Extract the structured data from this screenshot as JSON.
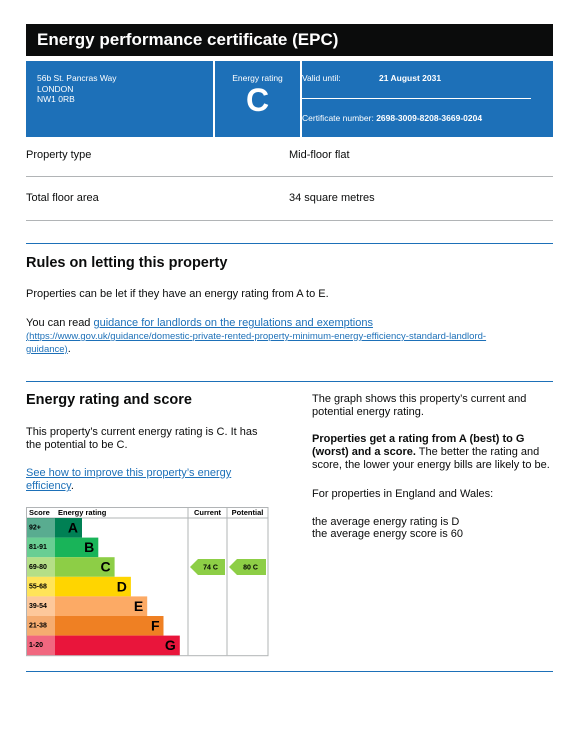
{
  "header": {
    "title": "Energy performance certificate (EPC)"
  },
  "summary": {
    "address": [
      "56b St. Pancras Way",
      "LONDON",
      "NW1 0RB"
    ],
    "rating_label": "Energy rating",
    "rating": "C",
    "valid_until_label": "Valid until:",
    "valid_until": "21 August 2031",
    "certificate_number_label": "Certificate number:",
    "certificate_number": "2698-3009-8208-3669-0204"
  },
  "details": [
    {
      "label": "Property type",
      "value": "Mid-floor flat"
    },
    {
      "label": "Total floor area",
      "value": "34 square metres"
    }
  ],
  "letting": {
    "heading": "Rules on letting this property",
    "text": "Properties can be let if they have an energy rating from A to E.",
    "read_prefix": "You can read",
    "link_text": "guidance for landlords on the regulations and exemptions",
    "link_url": "(https://www.gov.uk/guidance/domestic-private-rented-property-minimum-energy-efficiency-standard-landlord-guidance)",
    "read_suffix": "."
  },
  "rating": {
    "heading": "Energy rating and score",
    "current_text": "This property’s current energy rating is C. It has the potential to be C.",
    "improve_link": "See how to improve this property’s energy efficiency",
    "improve_suffix": ".",
    "graph": {
      "headers": [
        "Score",
        "Energy rating",
        "Current",
        "Potential"
      ],
      "bands": [
        {
          "score": "92+",
          "letter": "A",
          "color": "#008054"
        },
        {
          "score": "81-91",
          "letter": "B",
          "color": "#19b459"
        },
        {
          "score": "69-80",
          "letter": "C",
          "color": "#8dce46"
        },
        {
          "score": "55-68",
          "letter": "D",
          "color": "#ffd500"
        },
        {
          "score": "39-54",
          "letter": "E",
          "color": "#fcaa65"
        },
        {
          "score": "21-38",
          "letter": "F",
          "color": "#ef8023"
        },
        {
          "score": "1-20",
          "letter": "G",
          "color": "#e9153b"
        }
      ],
      "current": {
        "score": 74,
        "letter": "C"
      },
      "potential": {
        "score": 80,
        "letter": "C"
      }
    },
    "explanation": {
      "graph_text": "The graph shows this property’s current and potential energy rating.",
      "bold": "Properties get a rating from A (best) to G (worst) and a score.",
      "rest": " The better the rating and score, the lower your energy bills are likely to be.",
      "region": "For properties in England and Wales:",
      "average_rating": "the average energy rating is D",
      "average_score": "the average energy score is 60"
    }
  }
}
